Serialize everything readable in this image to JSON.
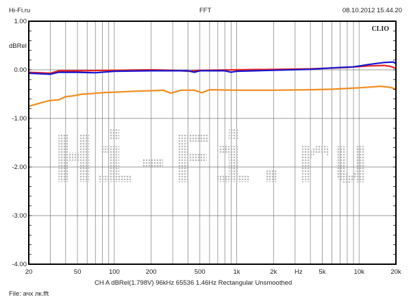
{
  "header": {
    "left": "Hi-Fi.ru",
    "center": "FFT",
    "right": "08.10.2012 15.44.20"
  },
  "brand": "CLIO",
  "watermark": "Hi-Fi.ru",
  "footer": {
    "settings": "CH A   dBRel(1.798V)   96kHz   65536   1.46Hz   Rectangular   Unsmoothed",
    "file": "File: ачх лк.fft"
  },
  "chart_data": {
    "type": "line",
    "title": "FFT",
    "xlabel": "Hz",
    "ylabel": "dBRel",
    "xscale": "log",
    "xlim": [
      20,
      20000
    ],
    "ylim": [
      -4,
      1
    ],
    "grid": true,
    "x_ticks": [
      {
        "v": 20,
        "label": "20"
      },
      {
        "v": 50,
        "label": "50"
      },
      {
        "v": 100,
        "label": "100"
      },
      {
        "v": 200,
        "label": "200"
      },
      {
        "v": 500,
        "label": "500"
      },
      {
        "v": 1000,
        "label": "1k"
      },
      {
        "v": 2000,
        "label": "2k"
      },
      {
        "v": 5000,
        "label": "5k"
      },
      {
        "v": 10000,
        "label": "10k"
      },
      {
        "v": 20000,
        "label": "20k"
      }
    ],
    "x_unit_tick": {
      "v": 3200,
      "label": "Hz"
    },
    "y_ticks": [
      {
        "v": 1,
        "label": "1.00"
      },
      {
        "v": 0,
        "label": "0.00"
      },
      {
        "v": -1,
        "label": "-1.00"
      },
      {
        "v": -2,
        "label": "-2.00"
      },
      {
        "v": -3,
        "label": "-3.00"
      },
      {
        "v": -4,
        "label": "-4.00"
      }
    ],
    "series": [
      {
        "color": "#e8201e",
        "points": [
          [
            20,
            -0.05
          ],
          [
            30,
            -0.07
          ],
          [
            35,
            -0.02
          ],
          [
            50,
            -0.02
          ],
          [
            100,
            -0.01
          ],
          [
            200,
            0
          ],
          [
            300,
            -0.01
          ],
          [
            400,
            -0.03
          ],
          [
            500,
            -0.01
          ],
          [
            1000,
            0
          ],
          [
            2000,
            0.01
          ],
          [
            4000,
            0.02
          ],
          [
            8000,
            0.05
          ],
          [
            12000,
            0.08
          ],
          [
            16000,
            0.09
          ],
          [
            18000,
            0.07
          ],
          [
            20000,
            0.03
          ]
        ]
      },
      {
        "color": "#1414d2",
        "points": [
          [
            20,
            -0.07
          ],
          [
            30,
            -0.09
          ],
          [
            35,
            -0.05
          ],
          [
            50,
            -0.05
          ],
          [
            70,
            -0.06
          ],
          [
            100,
            -0.03
          ],
          [
            200,
            -0.02
          ],
          [
            400,
            -0.02
          ],
          [
            450,
            -0.05
          ],
          [
            500,
            -0.02
          ],
          [
            800,
            -0.02
          ],
          [
            900,
            -0.05
          ],
          [
            1000,
            -0.03
          ],
          [
            2000,
            -0.01
          ],
          [
            4000,
            0.01
          ],
          [
            6000,
            0.04
          ],
          [
            9000,
            0.06
          ],
          [
            12000,
            0.11
          ],
          [
            16000,
            0.15
          ],
          [
            19000,
            0.16
          ],
          [
            20000,
            0.13
          ]
        ]
      },
      {
        "color": "#f28c1c",
        "points": [
          [
            20,
            -0.75
          ],
          [
            25,
            -0.68
          ],
          [
            30,
            -0.63
          ],
          [
            35,
            -0.62
          ],
          [
            40,
            -0.55
          ],
          [
            45,
            -0.54
          ],
          [
            55,
            -0.5
          ],
          [
            65,
            -0.49
          ],
          [
            80,
            -0.47
          ],
          [
            100,
            -0.46
          ],
          [
            150,
            -0.44
          ],
          [
            200,
            -0.43
          ],
          [
            250,
            -0.42
          ],
          [
            290,
            -0.48
          ],
          [
            350,
            -0.42
          ],
          [
            450,
            -0.42
          ],
          [
            520,
            -0.47
          ],
          [
            600,
            -0.41
          ],
          [
            1000,
            -0.42
          ],
          [
            2000,
            -0.42
          ],
          [
            4000,
            -0.41
          ],
          [
            6000,
            -0.4
          ],
          [
            10000,
            -0.37
          ],
          [
            15000,
            -0.34
          ],
          [
            18000,
            -0.36
          ],
          [
            20000,
            -0.4
          ]
        ]
      }
    ]
  }
}
